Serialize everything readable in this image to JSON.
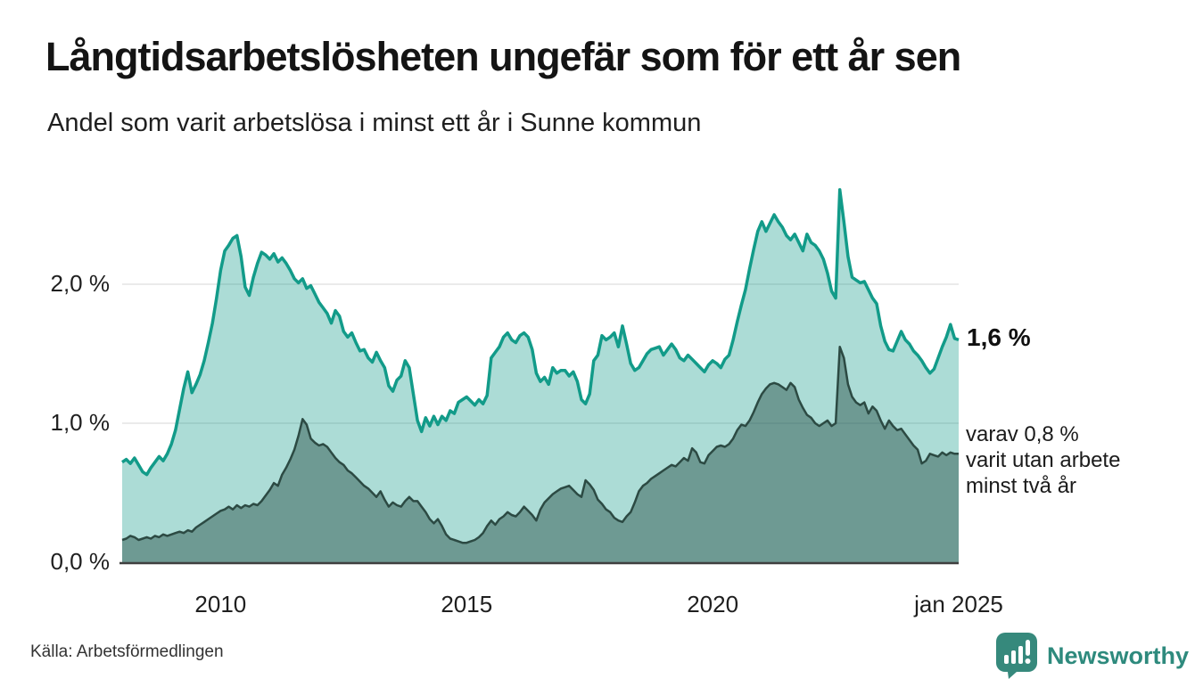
{
  "header": {
    "title": "Långtidsarbetslösheten ungefär som för ett år sen",
    "subtitle": "Andel som varit arbetslösa i minst ett år i Sunne kommun"
  },
  "annotations": {
    "latest_total": "1,6 %",
    "secondary_line1": "varav 0,8 %",
    "secondary_line2": "varit utan arbete",
    "secondary_line3": "minst två år"
  },
  "footer": {
    "source": "Källa: Arbetsförmedlingen",
    "brand_name": "Newsworthy",
    "brand_icon": "newsworthy-pin-barchart-icon",
    "brand_color": "#2e8a7d"
  },
  "colors": {
    "background": "#ffffff",
    "grid": "#e3e3e3",
    "axis": "#3f3f3f",
    "text": "#1f1f1f",
    "series1_line": "#129b89",
    "series1_fill": "rgba(18,155,137,0.35)",
    "series2_line": "#2c4a43",
    "series2_fill": "rgba(36,73,67,0.45)"
  },
  "chart_data": {
    "type": "area",
    "unit": "%",
    "frequency": "monthly",
    "x_start": "2008-01",
    "x_end": "2025-01",
    "ylim": [
      0,
      2.8
    ],
    "grid": "horizontal",
    "legend_position": "none",
    "yticks": [
      {
        "value": 0.0,
        "label": "0,0 %"
      },
      {
        "value": 1.0,
        "label": "1,0 %"
      },
      {
        "value": 2.0,
        "label": "2,0 %"
      }
    ],
    "xticks": [
      {
        "index": 24,
        "label": "2010"
      },
      {
        "index": 84,
        "label": "2015"
      },
      {
        "index": 144,
        "label": "2020"
      },
      {
        "index": 204,
        "label": "jan 2025"
      }
    ],
    "series": [
      {
        "name": "Andel arbetslösa minst ett år",
        "latest_value": 1.6,
        "values": [
          0.72,
          0.74,
          0.71,
          0.75,
          0.7,
          0.65,
          0.63,
          0.68,
          0.72,
          0.76,
          0.73,
          0.78,
          0.85,
          0.95,
          1.1,
          1.25,
          1.37,
          1.22,
          1.28,
          1.35,
          1.45,
          1.58,
          1.72,
          1.9,
          2.1,
          2.24,
          2.28,
          2.33,
          2.35,
          2.2,
          1.98,
          1.92,
          2.05,
          2.15,
          2.23,
          2.21,
          2.18,
          2.22,
          2.16,
          2.19,
          2.15,
          2.1,
          2.04,
          2.01,
          2.04,
          1.97,
          1.99,
          1.93,
          1.87,
          1.83,
          1.79,
          1.72,
          1.81,
          1.77,
          1.66,
          1.62,
          1.65,
          1.58,
          1.52,
          1.53,
          1.47,
          1.44,
          1.51,
          1.45,
          1.4,
          1.27,
          1.23,
          1.31,
          1.34,
          1.45,
          1.4,
          1.21,
          1.02,
          0.94,
          1.04,
          0.98,
          1.05,
          0.99,
          1.05,
          1.02,
          1.09,
          1.07,
          1.15,
          1.17,
          1.19,
          1.16,
          1.13,
          1.17,
          1.14,
          1.2,
          1.47,
          1.51,
          1.55,
          1.62,
          1.65,
          1.6,
          1.58,
          1.63,
          1.65,
          1.62,
          1.53,
          1.36,
          1.3,
          1.33,
          1.28,
          1.4,
          1.36,
          1.38,
          1.38,
          1.34,
          1.37,
          1.3,
          1.17,
          1.14,
          1.21,
          1.45,
          1.49,
          1.63,
          1.6,
          1.62,
          1.65,
          1.55,
          1.7,
          1.57,
          1.43,
          1.38,
          1.4,
          1.45,
          1.5,
          1.53,
          1.54,
          1.55,
          1.49,
          1.53,
          1.57,
          1.53,
          1.47,
          1.45,
          1.49,
          1.46,
          1.43,
          1.4,
          1.37,
          1.42,
          1.45,
          1.43,
          1.4,
          1.46,
          1.49,
          1.6,
          1.73,
          1.85,
          1.96,
          2.11,
          2.25,
          2.38,
          2.45,
          2.38,
          2.44,
          2.5,
          2.45,
          2.41,
          2.35,
          2.32,
          2.36,
          2.3,
          2.24,
          2.36,
          2.3,
          2.28,
          2.24,
          2.18,
          2.08,
          1.95,
          1.9,
          2.68,
          2.45,
          2.2,
          2.05,
          2.03,
          2.01,
          2.02,
          1.96,
          1.9,
          1.86,
          1.7,
          1.59,
          1.53,
          1.52,
          1.59,
          1.66,
          1.6,
          1.57,
          1.52,
          1.49,
          1.45,
          1.4,
          1.36,
          1.39,
          1.47,
          1.55,
          1.62,
          1.71,
          1.61,
          1.6
        ]
      },
      {
        "name": "Varav utan arbete minst två år",
        "latest_value": 0.8,
        "values": [
          0.16,
          0.17,
          0.19,
          0.18,
          0.16,
          0.17,
          0.18,
          0.17,
          0.19,
          0.18,
          0.2,
          0.19,
          0.2,
          0.21,
          0.22,
          0.21,
          0.23,
          0.22,
          0.25,
          0.27,
          0.29,
          0.31,
          0.33,
          0.35,
          0.37,
          0.38,
          0.4,
          0.38,
          0.41,
          0.39,
          0.41,
          0.4,
          0.42,
          0.41,
          0.44,
          0.48,
          0.52,
          0.57,
          0.55,
          0.63,
          0.68,
          0.74,
          0.81,
          0.91,
          1.03,
          0.99,
          0.89,
          0.86,
          0.84,
          0.85,
          0.83,
          0.79,
          0.75,
          0.72,
          0.7,
          0.66,
          0.64,
          0.61,
          0.58,
          0.55,
          0.53,
          0.5,
          0.47,
          0.51,
          0.45,
          0.4,
          0.43,
          0.41,
          0.4,
          0.44,
          0.47,
          0.44,
          0.44,
          0.4,
          0.36,
          0.31,
          0.28,
          0.31,
          0.26,
          0.2,
          0.17,
          0.16,
          0.15,
          0.14,
          0.14,
          0.15,
          0.16,
          0.18,
          0.21,
          0.26,
          0.3,
          0.27,
          0.31,
          0.33,
          0.36,
          0.34,
          0.33,
          0.36,
          0.4,
          0.37,
          0.34,
          0.3,
          0.38,
          0.43,
          0.46,
          0.49,
          0.51,
          0.53,
          0.54,
          0.55,
          0.52,
          0.49,
          0.47,
          0.59,
          0.56,
          0.52,
          0.45,
          0.42,
          0.38,
          0.36,
          0.32,
          0.3,
          0.29,
          0.33,
          0.36,
          0.43,
          0.51,
          0.55,
          0.57,
          0.6,
          0.62,
          0.64,
          0.66,
          0.68,
          0.7,
          0.69,
          0.72,
          0.75,
          0.73,
          0.82,
          0.79,
          0.72,
          0.71,
          0.77,
          0.8,
          0.83,
          0.84,
          0.83,
          0.85,
          0.89,
          0.95,
          0.99,
          0.98,
          1.02,
          1.08,
          1.15,
          1.21,
          1.25,
          1.28,
          1.29,
          1.28,
          1.26,
          1.24,
          1.29,
          1.26,
          1.17,
          1.11,
          1.06,
          1.04,
          1.0,
          0.98,
          1.0,
          1.02,
          0.98,
          1.0,
          1.55,
          1.47,
          1.28,
          1.19,
          1.15,
          1.13,
          1.15,
          1.07,
          1.12,
          1.09,
          1.02,
          0.96,
          1.02,
          0.98,
          0.95,
          0.96,
          0.92,
          0.88,
          0.84,
          0.81,
          0.71,
          0.73,
          0.78,
          0.77,
          0.76,
          0.79,
          0.77,
          0.79,
          0.78,
          0.78
        ]
      }
    ]
  }
}
